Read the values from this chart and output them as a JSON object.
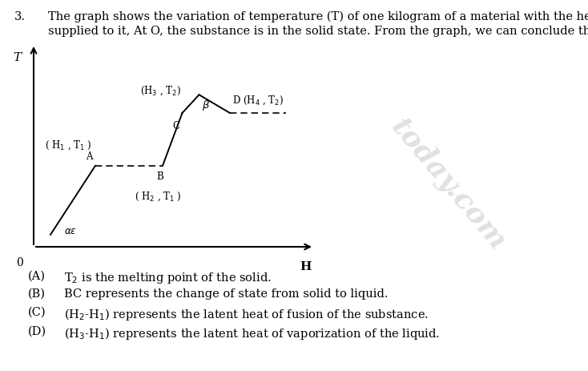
{
  "title_number": "3.",
  "question_line1": "The graph shows the variation of temperature (T) of one kilogram of a material with the heat (H)",
  "question_line2": "supplied to it, At O, the substance is in the solid state. From the graph, we can conclude that...",
  "options": [
    {
      "label": "(A)",
      "text": "T$_2$ is the melting point of the solid."
    },
    {
      "label": "(B)",
      "text": "BC represents the change of state from solid to liquid."
    },
    {
      "label": "(C)",
      "text": "(H$_2$-H$_1$) represents the latent heat of fusion of the substance."
    },
    {
      "label": "(D)",
      "text": "(H$_3$-H$_1$) represents the latent heat of vaporization of the liquid."
    }
  ],
  "bg_color": "#ffffff"
}
